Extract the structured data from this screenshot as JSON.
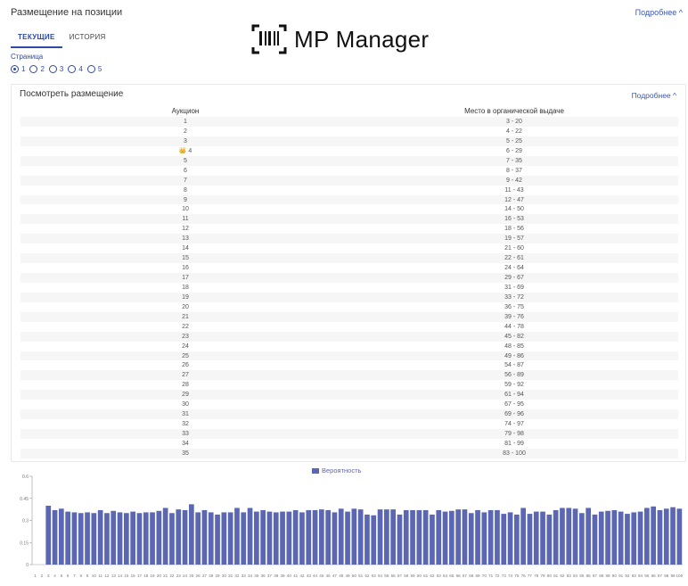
{
  "header": {
    "title": "Размещение на позиции",
    "more_label": "Подробнее ^"
  },
  "logo": {
    "text": "MP Manager",
    "icon": "barcode-bracket-icon"
  },
  "tabs": [
    {
      "label": "ТЕКУЩИЕ",
      "active": true
    },
    {
      "label": "ИСТОРИЯ",
      "active": false
    }
  ],
  "pager": {
    "label": "Страница",
    "options": [
      "1",
      "2",
      "3",
      "4",
      "5"
    ],
    "selected": "1"
  },
  "panel": {
    "title": "Посмотреть размещение",
    "more_label": "Подробнее ^",
    "columns": [
      "Аукцион",
      "Место в органической выдаче"
    ],
    "rows": [
      {
        "auction": "1",
        "place": "3 - 20"
      },
      {
        "auction": "2",
        "place": "4 - 22"
      },
      {
        "auction": "3",
        "place": "5 - 25"
      },
      {
        "auction": "4",
        "place": "6 - 29",
        "crown": true
      },
      {
        "auction": "5",
        "place": "7 - 35"
      },
      {
        "auction": "6",
        "place": "8 - 37"
      },
      {
        "auction": "7",
        "place": "9 - 42"
      },
      {
        "auction": "8",
        "place": "11 - 43"
      },
      {
        "auction": "9",
        "place": "12 - 47"
      },
      {
        "auction": "10",
        "place": "14 - 50"
      },
      {
        "auction": "11",
        "place": "16 - 53"
      },
      {
        "auction": "12",
        "place": "18 - 56"
      },
      {
        "auction": "13",
        "place": "19 - 57"
      },
      {
        "auction": "14",
        "place": "21 - 60"
      },
      {
        "auction": "15",
        "place": "22 - 61"
      },
      {
        "auction": "16",
        "place": "24 - 64"
      },
      {
        "auction": "17",
        "place": "29 - 67"
      },
      {
        "auction": "18",
        "place": "31 - 69"
      },
      {
        "auction": "19",
        "place": "33 - 72"
      },
      {
        "auction": "20",
        "place": "36 - 75"
      },
      {
        "auction": "21",
        "place": "39 - 76"
      },
      {
        "auction": "22",
        "place": "44 - 78"
      },
      {
        "auction": "23",
        "place": "45 - 82"
      },
      {
        "auction": "24",
        "place": "48 - 85"
      },
      {
        "auction": "25",
        "place": "49 - 86"
      },
      {
        "auction": "26",
        "place": "54 - 87"
      },
      {
        "auction": "27",
        "place": "56 - 89"
      },
      {
        "auction": "28",
        "place": "59 - 92"
      },
      {
        "auction": "29",
        "place": "61 - 94"
      },
      {
        "auction": "30",
        "place": "67 - 95"
      },
      {
        "auction": "31",
        "place": "69 - 96"
      },
      {
        "auction": "32",
        "place": "74 - 97"
      },
      {
        "auction": "33",
        "place": "79 - 98"
      },
      {
        "auction": "34",
        "place": "81 - 99"
      },
      {
        "auction": "35",
        "place": "83 - 100"
      }
    ]
  },
  "colors": {
    "accent": "#2f4aa8",
    "bar": "#5c67b3",
    "row_alt": "#f6f6f6"
  },
  "chart_data": {
    "type": "bar",
    "legend": "Вероятность",
    "legend_position": "top-center",
    "ylim": [
      0,
      0.6
    ],
    "yticks": [
      "0",
      "0.15",
      "0.3",
      "0.45",
      "0.6"
    ],
    "grid": false,
    "categories": [
      "1",
      "2",
      "3",
      "4",
      "5",
      "6",
      "7",
      "8",
      "9",
      "10",
      "11",
      "12",
      "13",
      "14",
      "15",
      "16",
      "17",
      "18",
      "19",
      "20",
      "21",
      "22",
      "23",
      "24",
      "25",
      "26",
      "27",
      "28",
      "29",
      "30",
      "31",
      "32",
      "33",
      "34",
      "35",
      "36",
      "37",
      "38",
      "39",
      "40",
      "41",
      "42",
      "43",
      "44",
      "45",
      "46",
      "47",
      "48",
      "49",
      "50",
      "51",
      "52",
      "53",
      "54",
      "55",
      "56",
      "57",
      "58",
      "59",
      "60",
      "61",
      "62",
      "63",
      "64",
      "65",
      "66",
      "67",
      "68",
      "69",
      "70",
      "71",
      "72",
      "73",
      "74",
      "75",
      "76",
      "77",
      "78",
      "79",
      "80",
      "81",
      "82",
      "83",
      "84",
      "85",
      "86",
      "87",
      "88",
      "89",
      "90",
      "91",
      "92",
      "93",
      "94",
      "95",
      "96",
      "97",
      "98",
      "99",
      "100"
    ],
    "values": [
      0,
      0,
      0.4,
      0.37,
      0.38,
      0.36,
      0.355,
      0.35,
      0.355,
      0.35,
      0.37,
      0.35,
      0.365,
      0.355,
      0.35,
      0.36,
      0.35,
      0.355,
      0.355,
      0.365,
      0.385,
      0.35,
      0.375,
      0.37,
      0.41,
      0.355,
      0.37,
      0.355,
      0.34,
      0.355,
      0.355,
      0.385,
      0.355,
      0.385,
      0.36,
      0.37,
      0.36,
      0.355,
      0.36,
      0.36,
      0.37,
      0.355,
      0.37,
      0.37,
      0.375,
      0.37,
      0.355,
      0.38,
      0.36,
      0.38,
      0.375,
      0.34,
      0.335,
      0.375,
      0.375,
      0.375,
      0.34,
      0.37,
      0.37,
      0.37,
      0.37,
      0.34,
      0.37,
      0.36,
      0.365,
      0.375,
      0.375,
      0.35,
      0.37,
      0.355,
      0.37,
      0.37,
      0.345,
      0.355,
      0.34,
      0.385,
      0.345,
      0.36,
      0.36,
      0.34,
      0.37,
      0.385,
      0.385,
      0.38,
      0.35,
      0.385,
      0.34,
      0.36,
      0.365,
      0.37,
      0.36,
      0.345,
      0.355,
      0.36,
      0.385,
      0.395,
      0.37,
      0.38,
      0.39,
      0.38
    ]
  }
}
